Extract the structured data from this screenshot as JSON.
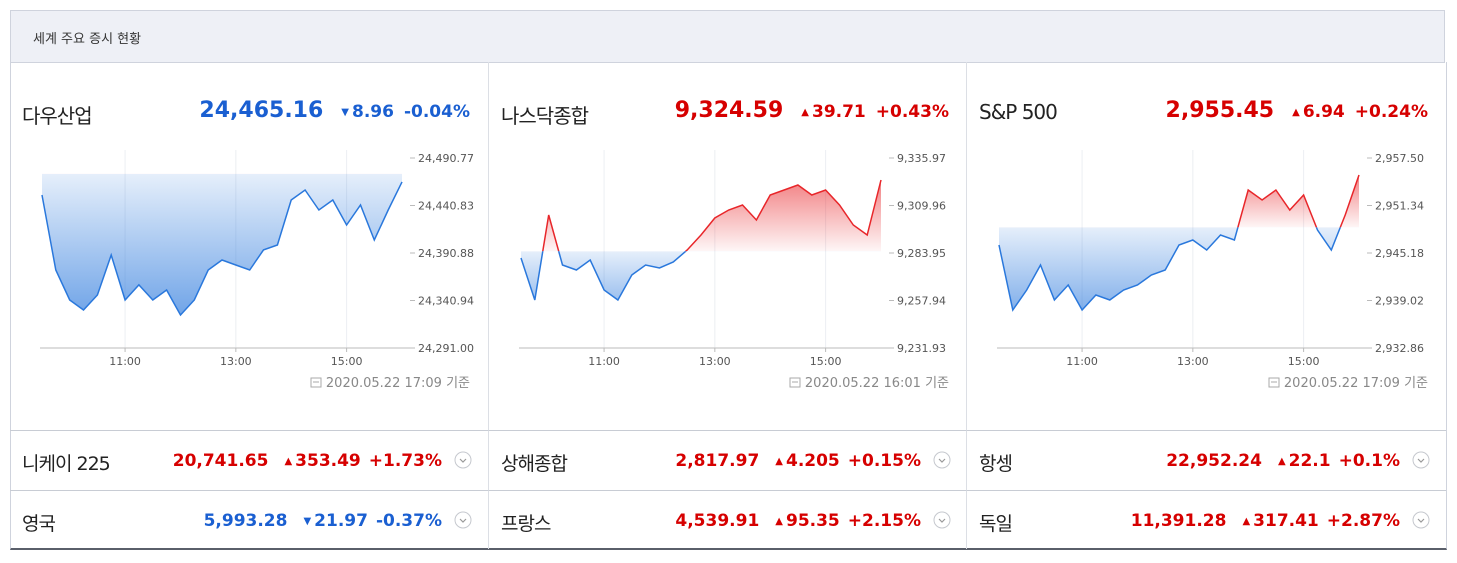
{
  "header": {
    "title": "세계 주요 증시 현황"
  },
  "panels": [
    {
      "name": "다우산업",
      "price": "24,465.16",
      "change": "8.96",
      "change_rate": "-0.04%",
      "trend": "down",
      "timestamp": "2020.05.22 17:09 기준",
      "chart": {
        "type": "line",
        "x": [
          "09:30",
          "09:45",
          "10:00",
          "10:15",
          "10:30",
          "10:45",
          "11:00",
          "11:15",
          "11:30",
          "11:45",
          "12:00",
          "12:15",
          "12:30",
          "12:45",
          "13:00",
          "13:15",
          "13:30",
          "13:45",
          "14:00",
          "14:15",
          "14:30",
          "14:45",
          "15:00",
          "15:15",
          "15:30",
          "15:45",
          "16:00"
        ],
        "values": [
          24451.9,
          24373.0,
          24341.5,
          24331.0,
          24346.7,
          24388.8,
          24341.5,
          24357.3,
          24341.5,
          24352.0,
          24325.7,
          24341.5,
          24373.0,
          24383.5,
          24378.3,
          24373.0,
          24394.1,
          24399.3,
          24446.6,
          24457.1,
          24436.1,
          24446.6,
          24420.3,
          24441.4,
          24404.6,
          24436.1,
          24465.6
        ],
        "xlim": [
          "09:30",
          "16:00"
        ],
        "xticks": [
          "11:00",
          "13:00",
          "15:00"
        ],
        "ylim": [
          24291.0,
          24490.77
        ],
        "yticks": [
          {
            "value": 24291.0,
            "label": "24,291.00"
          },
          {
            "value": 24340.94,
            "label": "24,340.94"
          },
          {
            "value": 24390.88,
            "label": "24,390.88"
          },
          {
            "value": 24440.83,
            "label": "24,440.83"
          },
          {
            "value": 24490.77,
            "label": "24,490.77"
          }
        ]
      }
    },
    {
      "name": "나스닥종합",
      "price": "9,324.59",
      "change": "39.71",
      "change_rate": "+0.43%",
      "trend": "up",
      "timestamp": "2020.05.22 16:01 기준",
      "chart": {
        "type": "line",
        "x": [
          "09:30",
          "09:45",
          "10:00",
          "10:15",
          "10:30",
          "10:45",
          "11:00",
          "11:15",
          "11:30",
          "11:45",
          "12:00",
          "12:15",
          "12:30",
          "12:45",
          "13:00",
          "13:15",
          "13:30",
          "13:45",
          "14:00",
          "14:15",
          "14:30",
          "14:45",
          "15:00",
          "15:15",
          "15:30",
          "15:45",
          "16:00"
        ],
        "values": [
          9281.21,
          9258.21,
          9304.76,
          9277.38,
          9274.64,
          9280.11,
          9263.69,
          9258.21,
          9271.9,
          9277.38,
          9275.73,
          9279.02,
          9285.59,
          9293.8,
          9303.11,
          9307.49,
          9310.23,
          9302.02,
          9315.71,
          9318.45,
          9321.18,
          9315.71,
          9318.45,
          9310.23,
          9299.28,
          9293.8,
          9323.92
        ],
        "xlim": [
          "09:30",
          "16:00"
        ],
        "xticks": [
          "11:00",
          "13:00",
          "15:00"
        ],
        "ylim": [
          9231.93,
          9335.97
        ],
        "yticks": [
          {
            "value": 9231.93,
            "label": "9,231.93"
          },
          {
            "value": 9257.94,
            "label": "9,257.94"
          },
          {
            "value": 9283.95,
            "label": "9,283.95"
          },
          {
            "value": 9309.96,
            "label": "9,309.96"
          },
          {
            "value": 9335.97,
            "label": "9,335.97"
          }
        ]
      }
    },
    {
      "name": "S&P 500",
      "price": "2,955.45",
      "change": "6.94",
      "change_rate": "+0.24%",
      "trend": "up",
      "timestamp": "2020.05.22 17:09 기준",
      "chart": {
        "type": "line",
        "x": [
          "09:30",
          "09:45",
          "10:00",
          "10:15",
          "10:30",
          "10:45",
          "11:00",
          "11:15",
          "11:30",
          "11:45",
          "12:00",
          "12:15",
          "12:30",
          "12:45",
          "13:00",
          "13:15",
          "13:30",
          "13:45",
          "14:00",
          "14:15",
          "14:30",
          "14:45",
          "15:00",
          "15:15",
          "15:30",
          "15:45",
          "16:00"
        ],
        "values": [
          2946.22,
          2937.79,
          2940.38,
          2943.62,
          2939.09,
          2941.03,
          2937.79,
          2939.73,
          2939.09,
          2940.38,
          2941.03,
          2942.33,
          2942.98,
          2946.22,
          2946.87,
          2945.57,
          2947.51,
          2946.87,
          2953.35,
          2952.05,
          2953.35,
          2950.76,
          2952.7,
          2948.16,
          2945.57,
          2950.11,
          2955.3
        ],
        "xlim": [
          "09:30",
          "16:00"
        ],
        "xticks": [
          "11:00",
          "13:00",
          "15:00"
        ],
        "ylim": [
          2932.86,
          2957.5
        ],
        "yticks": [
          {
            "value": 2932.86,
            "label": "2,932.86"
          },
          {
            "value": 2939.02,
            "label": "2,939.02"
          },
          {
            "value": 2945.18,
            "label": "2,945.18"
          },
          {
            "value": 2951.34,
            "label": "2,951.34"
          },
          {
            "value": 2957.5,
            "label": "2,957.50"
          }
        ]
      }
    }
  ],
  "rows": [
    [
      {
        "name": "니케이 225",
        "price": "20,741.65",
        "change": "353.49",
        "change_rate": "+1.73%",
        "trend": "up"
      },
      {
        "name": "상해종합",
        "price": "2,817.97",
        "change": "4.205",
        "change_rate": "+0.15%",
        "trend": "up"
      },
      {
        "name": "항셍",
        "price": "22,952.24",
        "change": "22.1",
        "change_rate": "+0.1%",
        "trend": "up"
      }
    ],
    [
      {
        "name": "영국",
        "price": "5,993.28",
        "change": "21.97",
        "change_rate": "-0.37%",
        "trend": "down"
      },
      {
        "name": "프랑스",
        "price": "4,539.91",
        "change": "95.35",
        "change_rate": "+2.15%",
        "trend": "up"
      },
      {
        "name": "독일",
        "price": "11,391.28",
        "change": "317.41",
        "change_rate": "+2.87%",
        "trend": "up"
      }
    ]
  ]
}
